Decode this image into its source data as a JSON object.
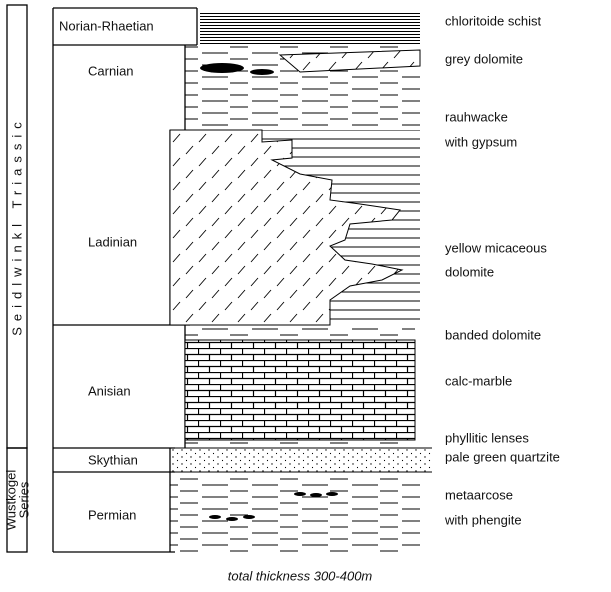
{
  "groups": [
    {
      "label": "Seidlwinkl Triassic"
    },
    {
      "lines": [
        "Wustkogel",
        "Series"
      ]
    }
  ],
  "stages": [
    "Norian-Rhaetian",
    "Carnian",
    "Ladinian",
    "Anisian",
    "Skythian",
    "Permian"
  ],
  "lithology": [
    "chloritoide schist",
    "grey dolomite",
    "rauhwacke",
    "with gypsum",
    "yellow micaceous",
    "dolomite",
    "banded dolomite",
    "calc-marble",
    "phyllitic lenses",
    "pale green quartzite",
    "metaarcose",
    "with phengite"
  ],
  "footer": "total thickness 300-400m"
}
